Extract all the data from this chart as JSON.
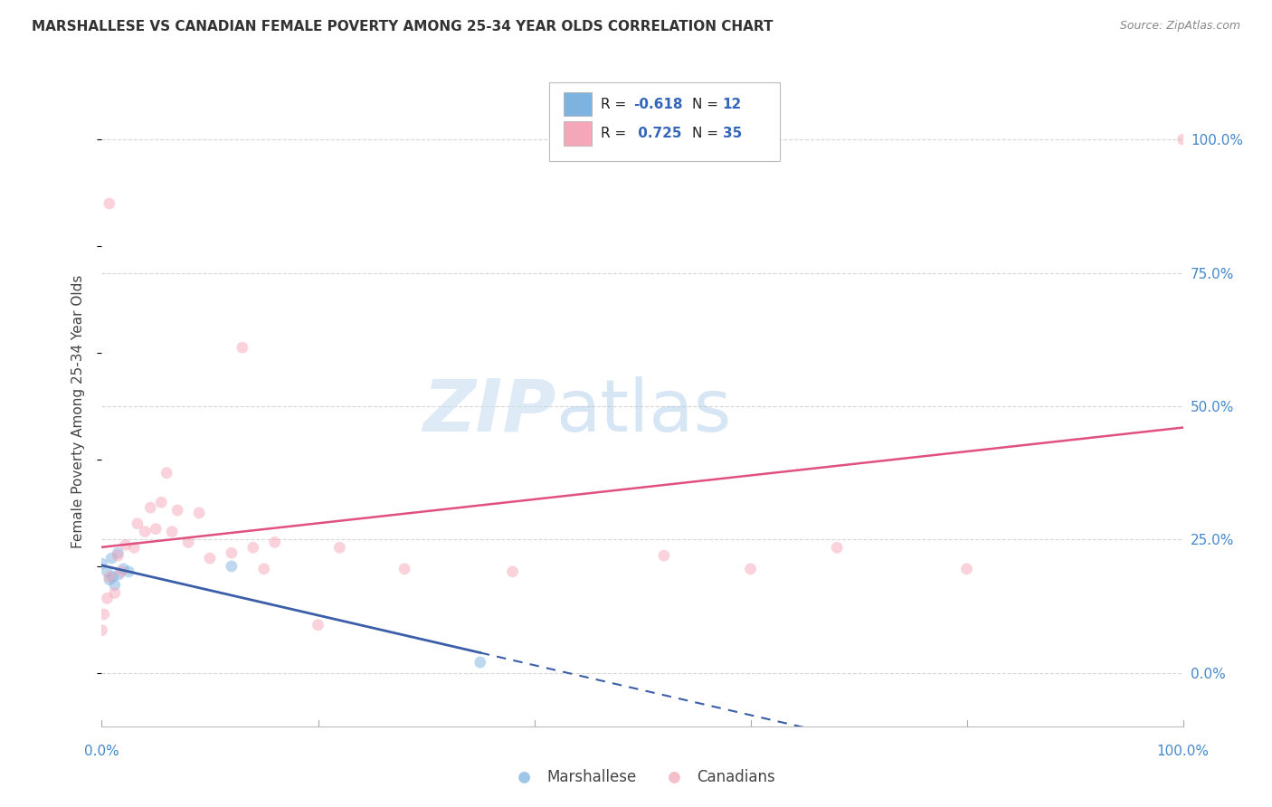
{
  "title": "MARSHALLESE VS CANADIAN FEMALE POVERTY AMONG 25-34 YEAR OLDS CORRELATION CHART",
  "source": "Source: ZipAtlas.com",
  "ylabel": "Female Poverty Among 25-34 Year Olds",
  "marshallese_x": [
    0.0,
    0.005,
    0.007,
    0.009,
    0.01,
    0.012,
    0.015,
    0.016,
    0.02,
    0.025,
    0.12,
    0.35
  ],
  "marshallese_y": [
    0.205,
    0.19,
    0.175,
    0.215,
    0.18,
    0.165,
    0.225,
    0.185,
    0.195,
    0.19,
    0.2,
    0.02
  ],
  "canadians_x": [
    0.0,
    0.002,
    0.005,
    0.007,
    0.007,
    0.012,
    0.015,
    0.018,
    0.022,
    0.03,
    0.033,
    0.04,
    0.045,
    0.05,
    0.055,
    0.06,
    0.065,
    0.07,
    0.08,
    0.09,
    0.1,
    0.12,
    0.13,
    0.14,
    0.15,
    0.16,
    0.2,
    0.22,
    0.28,
    0.38,
    0.52,
    0.6,
    0.68,
    0.8,
    1.0
  ],
  "canadians_y": [
    0.08,
    0.11,
    0.14,
    0.18,
    0.88,
    0.15,
    0.22,
    0.19,
    0.24,
    0.235,
    0.28,
    0.265,
    0.31,
    0.27,
    0.32,
    0.375,
    0.265,
    0.305,
    0.245,
    0.3,
    0.215,
    0.225,
    0.61,
    0.235,
    0.195,
    0.245,
    0.09,
    0.235,
    0.195,
    0.19,
    0.22,
    0.195,
    0.235,
    0.195,
    1.0
  ],
  "marshallese_color": "#7eb3e0",
  "canadians_color": "#f4a7b9",
  "marshallese_line_color": "#3a5ea8",
  "canadians_line_color": "#e05080",
  "r_marshallese": "-0.618",
  "n_marshallese": "12",
  "r_canadians": "0.725",
  "n_canadians": "35",
  "watermark_zip": "ZIP",
  "watermark_atlas": "atlas",
  "ytick_values": [
    0.0,
    0.25,
    0.5,
    0.75,
    1.0
  ],
  "ytick_labels": [
    "0.0%",
    "25.0%",
    "50.0%",
    "75.0%",
    "100.0%"
  ],
  "xtick_values": [
    0.0,
    1.0
  ],
  "xtick_labels": [
    "0.0%",
    "100.0%"
  ],
  "xmin": 0.0,
  "xmax": 1.0,
  "ymin": -0.1,
  "ymax": 1.08,
  "marker_size": 85,
  "marker_alpha": 0.5,
  "grid_color": "#cccccc",
  "bg_color": "#ffffff",
  "accent_color": "#4488cc",
  "legend_accent": "#3366bb"
}
